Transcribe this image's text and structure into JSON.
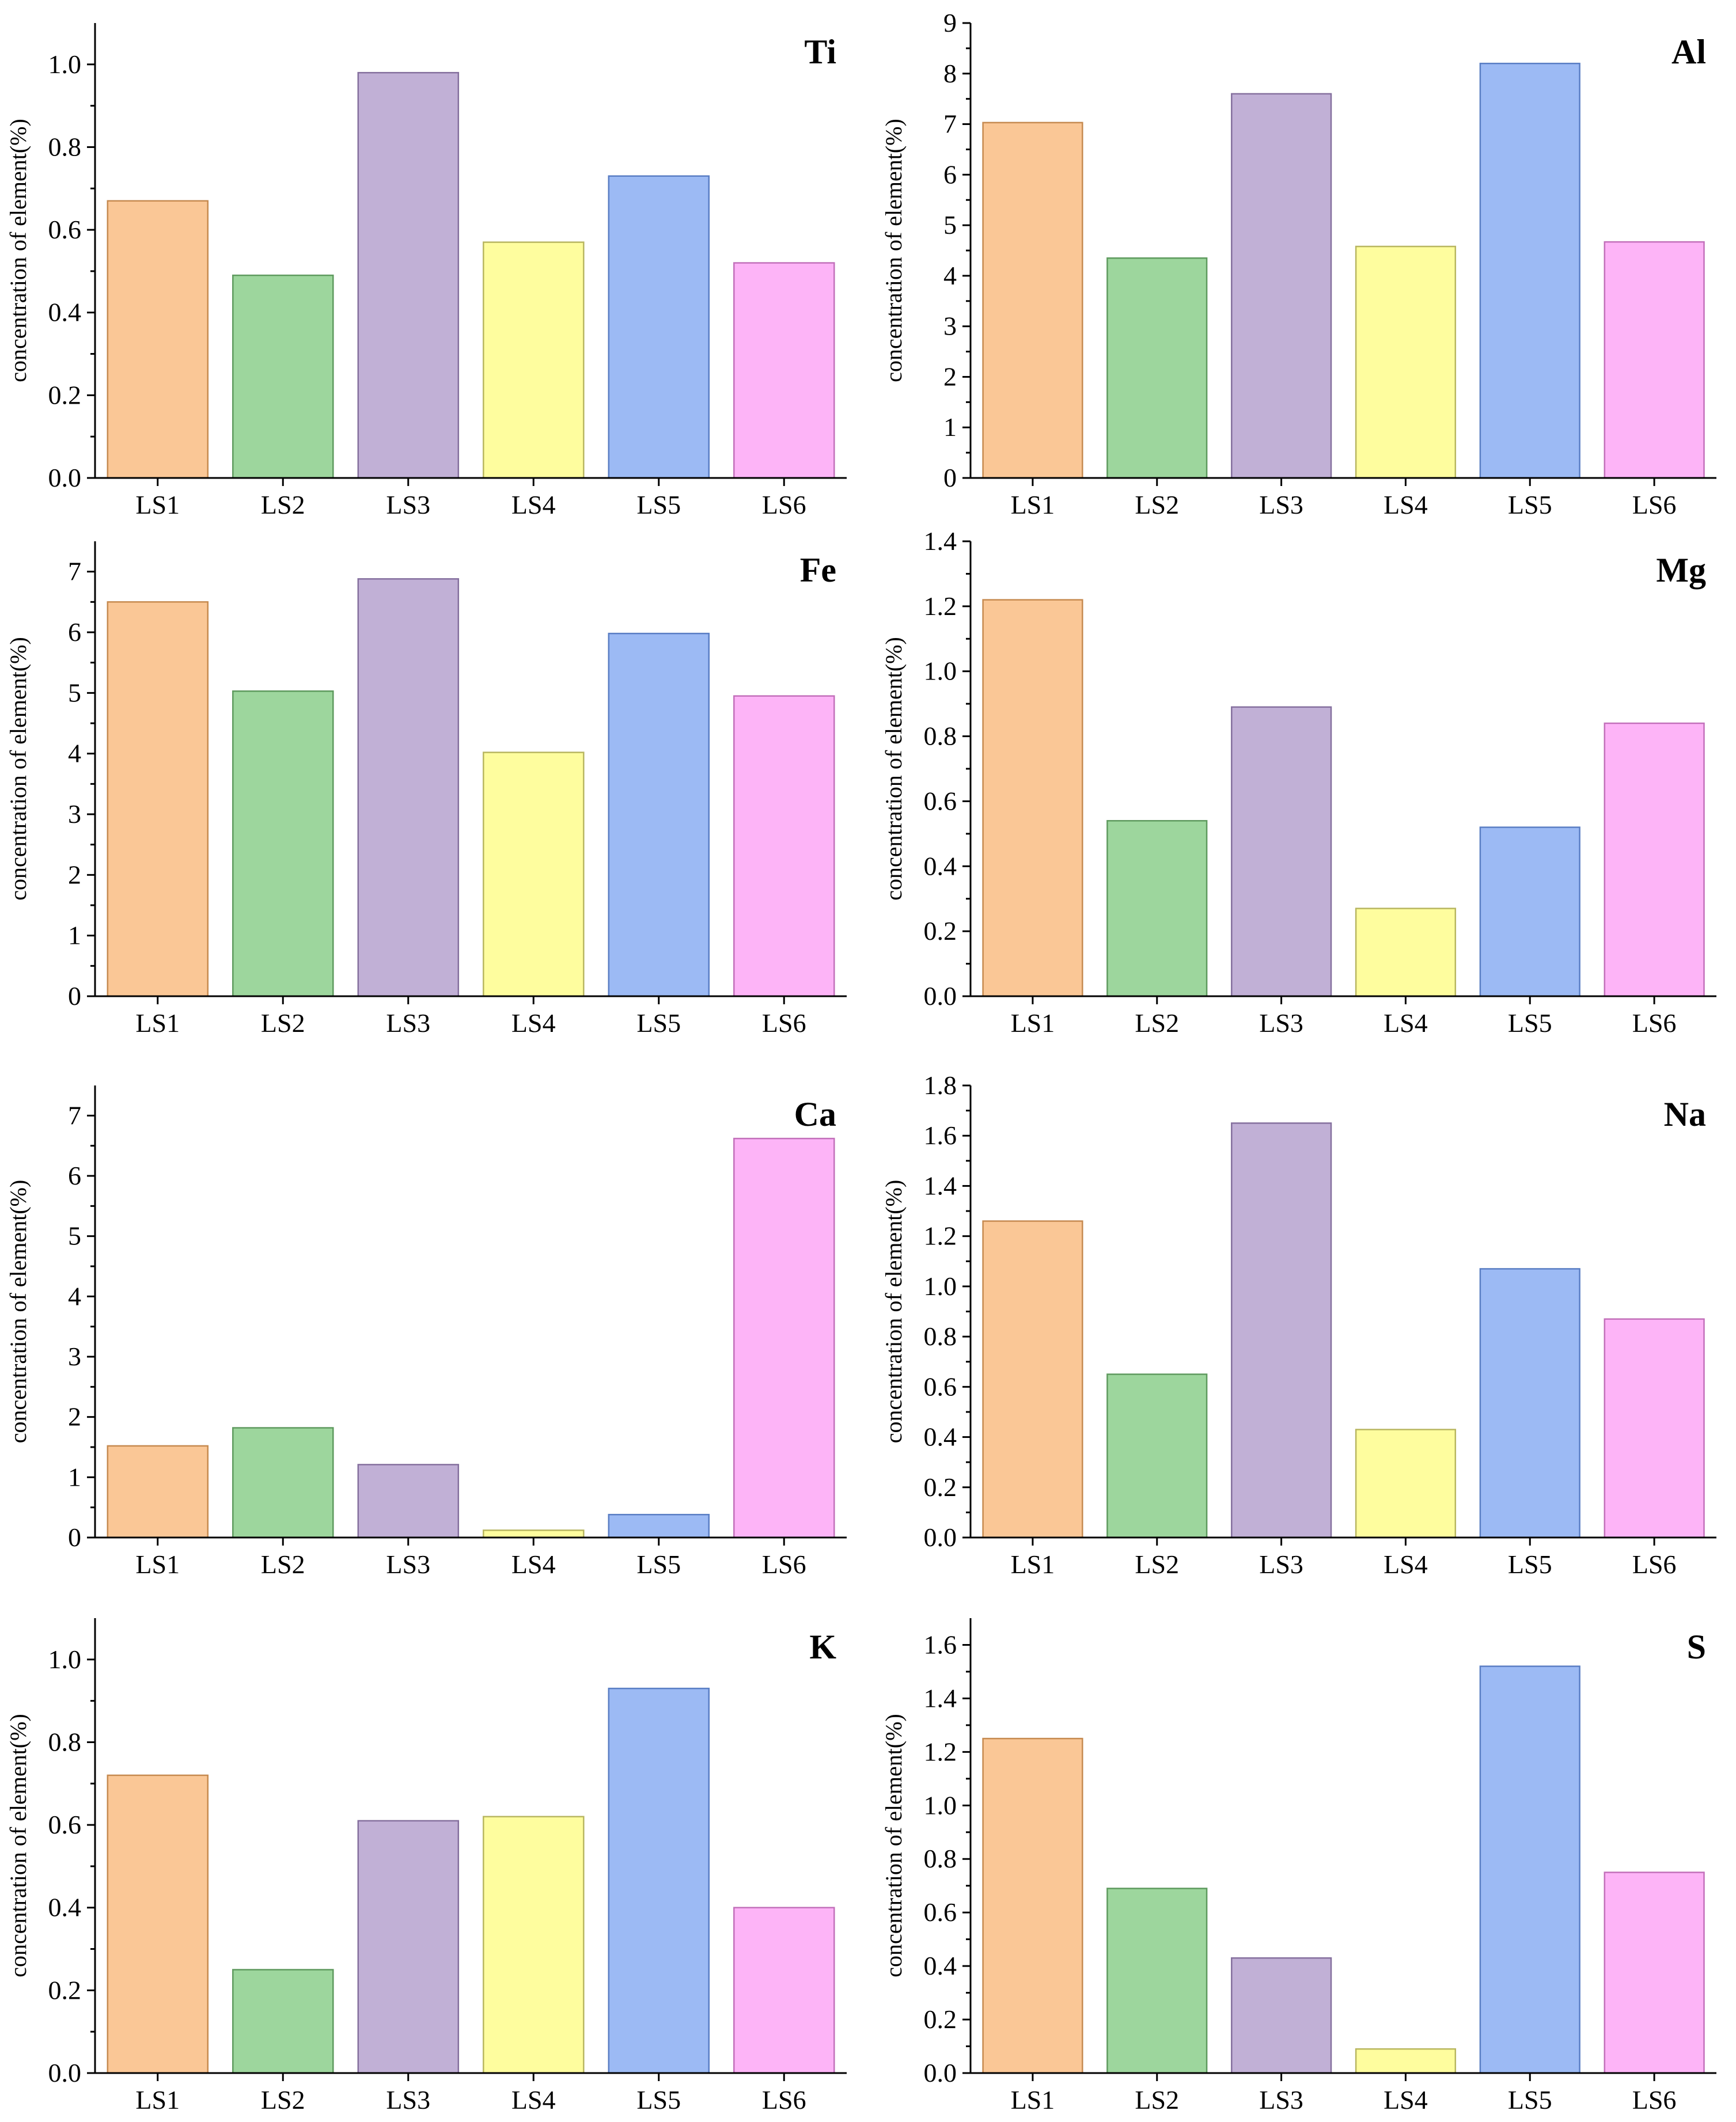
{
  "colors": {
    "LS1": "#FAC796",
    "LS2": "#9DD69D",
    "LS3": "#C1B0D6",
    "LS4": "#FEFD9E",
    "LS5": "#9CBAF4",
    "LS6": "#FDB4F7"
  },
  "stroke_colors": {
    "LS1": "#C68A50",
    "LS2": "#5E9A5E",
    "LS3": "#85709E",
    "LS4": "#B8B660",
    "LS5": "#5A7EC4",
    "LS6": "#C270BA"
  },
  "chart_data": [
    {
      "type": "bar",
      "title": "Ti",
      "xlabel": "",
      "ylabel": "concentration of element(%)",
      "categories": [
        "LS1",
        "LS2",
        "LS3",
        "LS4",
        "LS5",
        "LS6"
      ],
      "values": [
        0.67,
        0.49,
        0.98,
        0.57,
        0.73,
        0.52
      ],
      "ylim": [
        0,
        1.1
      ],
      "yticks": [
        0.0,
        0.2,
        0.4,
        0.6,
        0.8,
        1.0
      ],
      "ytick_labels": [
        "0.0",
        "0.2",
        "0.4",
        "0.6",
        "0.8",
        "1.0"
      ],
      "minor_step": 0.1
    },
    {
      "type": "bar",
      "title": "Al",
      "xlabel": "",
      "ylabel": "concentration of element(%)",
      "categories": [
        "LS1",
        "LS2",
        "LS3",
        "LS4",
        "LS5",
        "LS6"
      ],
      "values": [
        7.03,
        4.35,
        7.6,
        4.58,
        8.2,
        4.67
      ],
      "ylim": [
        0,
        9
      ],
      "yticks": [
        0,
        1,
        2,
        3,
        4,
        5,
        6,
        7,
        8,
        9
      ],
      "ytick_labels": [
        "0",
        "1",
        "2",
        "3",
        "4",
        "5",
        "6",
        "7",
        "8",
        "9"
      ],
      "minor_step": 0.5
    },
    {
      "type": "bar",
      "title": "Fe",
      "xlabel": "",
      "ylabel": "concentration of element(%)",
      "categories": [
        "LS1",
        "LS2",
        "LS3",
        "LS4",
        "LS5",
        "LS6"
      ],
      "values": [
        6.5,
        5.03,
        6.88,
        4.02,
        5.98,
        4.95
      ],
      "ylim": [
        0,
        7.5
      ],
      "yticks": [
        0,
        1,
        2,
        3,
        4,
        5,
        6,
        7
      ],
      "ytick_labels": [
        "0",
        "1",
        "2",
        "3",
        "4",
        "5",
        "6",
        "7"
      ],
      "minor_step": 0.5
    },
    {
      "type": "bar",
      "title": "Mg",
      "xlabel": "",
      "ylabel": "concentration of element(%)",
      "categories": [
        "LS1",
        "LS2",
        "LS3",
        "LS4",
        "LS5",
        "LS6"
      ],
      "values": [
        1.22,
        0.54,
        0.89,
        0.27,
        0.52,
        0.84
      ],
      "ylim": [
        0,
        1.4
      ],
      "yticks": [
        0.0,
        0.2,
        0.4,
        0.6,
        0.8,
        1.0,
        1.2,
        1.4
      ],
      "ytick_labels": [
        "0.0",
        "0.2",
        "0.4",
        "0.6",
        "0.8",
        "1.0",
        "1.2",
        "1.4"
      ],
      "minor_step": 0.1
    },
    {
      "type": "bar",
      "title": "Ca",
      "xlabel": "",
      "ylabel": "concentration of element(%)",
      "categories": [
        "LS1",
        "LS2",
        "LS3",
        "LS4",
        "LS5",
        "LS6"
      ],
      "values": [
        1.52,
        1.82,
        1.21,
        0.12,
        0.38,
        6.62
      ],
      "ylim": [
        0,
        7.5
      ],
      "yticks": [
        0,
        1,
        2,
        3,
        4,
        5,
        6,
        7
      ],
      "ytick_labels": [
        "0",
        "1",
        "2",
        "3",
        "4",
        "5",
        "6",
        "7"
      ],
      "minor_step": 0.5
    },
    {
      "type": "bar",
      "title": "Na",
      "xlabel": "",
      "ylabel": "concentration of element(%)",
      "categories": [
        "LS1",
        "LS2",
        "LS3",
        "LS4",
        "LS5",
        "LS6"
      ],
      "values": [
        1.26,
        0.65,
        1.65,
        0.43,
        1.07,
        0.87
      ],
      "ylim": [
        0,
        1.8
      ],
      "yticks": [
        0.0,
        0.2,
        0.4,
        0.6,
        0.8,
        1.0,
        1.2,
        1.4,
        1.6,
        1.8
      ],
      "ytick_labels": [
        "0.0",
        "0.2",
        "0.4",
        "0.6",
        "0.8",
        "1.0",
        "1.2",
        "1.4",
        "1.6",
        "1.8"
      ],
      "minor_step": 0.1
    },
    {
      "type": "bar",
      "title": "K",
      "xlabel": "",
      "ylabel": "concentration of element(%)",
      "categories": [
        "LS1",
        "LS2",
        "LS3",
        "LS4",
        "LS5",
        "LS6"
      ],
      "values": [
        0.72,
        0.25,
        0.61,
        0.62,
        0.93,
        0.4
      ],
      "ylim": [
        0,
        1.1
      ],
      "yticks": [
        0.0,
        0.2,
        0.4,
        0.6,
        0.8,
        1.0
      ],
      "ytick_labels": [
        "0.0",
        "0.2",
        "0.4",
        "0.6",
        "0.8",
        "1.0"
      ],
      "minor_step": 0.1
    },
    {
      "type": "bar",
      "title": "S",
      "xlabel": "",
      "ylabel": "concentration of element(%)",
      "categories": [
        "LS1",
        "LS2",
        "LS3",
        "LS4",
        "LS5",
        "LS6"
      ],
      "values": [
        1.25,
        0.69,
        0.43,
        0.09,
        1.52,
        0.75
      ],
      "ylim": [
        0,
        1.7
      ],
      "yticks": [
        0.0,
        0.2,
        0.4,
        0.6,
        0.8,
        1.0,
        1.2,
        1.4,
        1.6
      ],
      "ytick_labels": [
        "0.0",
        "0.2",
        "0.4",
        "0.6",
        "0.8",
        "1.0",
        "1.2",
        "1.4",
        "1.6"
      ],
      "minor_step": 0.1
    }
  ]
}
